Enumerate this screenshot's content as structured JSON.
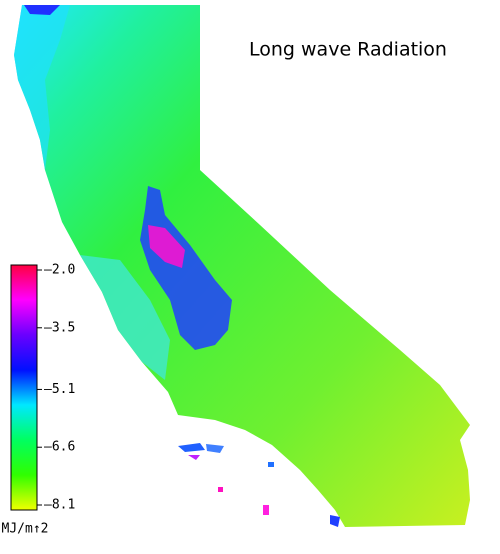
{
  "title": "Long wave Radiation",
  "legend": {
    "unit": "MJ/m↑2",
    "ticks": [
      {
        "value": -2.0,
        "label": "–2.0"
      },
      {
        "value": -3.5,
        "label": "–3.5"
      },
      {
        "value": -5.1,
        "label": "–5.1"
      },
      {
        "value": -6.6,
        "label": "–6.6"
      },
      {
        "value": -8.1,
        "label": "–8.1"
      }
    ],
    "colors": [
      "#ff0040",
      "#ff00ff",
      "#6a00ff",
      "#0010ff",
      "#00e8ff",
      "#00ff60",
      "#30ff00",
      "#f0ff00"
    ]
  }
}
